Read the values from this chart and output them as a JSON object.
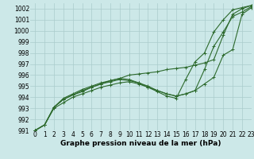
{
  "background_color": "#cce8e8",
  "grid_color": "#aacccc",
  "line_color": "#2d6a2d",
  "title": "Graphe pression niveau de la mer (hPa)",
  "xlim": [
    -0.5,
    23
  ],
  "ylim": [
    991,
    1002.5
  ],
  "xticks": [
    0,
    1,
    2,
    3,
    4,
    5,
    6,
    7,
    8,
    9,
    10,
    11,
    12,
    13,
    14,
    15,
    16,
    17,
    18,
    19,
    20,
    21,
    22,
    23
  ],
  "yticks": [
    991,
    992,
    993,
    994,
    995,
    996,
    997,
    998,
    999,
    1000,
    1001,
    1002
  ],
  "line1_x": [
    0,
    1,
    2,
    3,
    4,
    5,
    6,
    7,
    8,
    9,
    10,
    11,
    12,
    13,
    14,
    15,
    16,
    17,
    18,
    19,
    20,
    21,
    22,
    23
  ],
  "line1_y": [
    991.0,
    991.5,
    993.0,
    993.5,
    994.0,
    994.3,
    994.6,
    994.9,
    995.1,
    995.3,
    995.4,
    995.2,
    994.9,
    994.6,
    994.3,
    994.1,
    994.3,
    994.6,
    995.2,
    995.8,
    997.8,
    998.3,
    1001.5,
    1002.1
  ],
  "line2_x": [
    0,
    1,
    2,
    3,
    4,
    5,
    6,
    7,
    8,
    9,
    10,
    11,
    12,
    13,
    14,
    15,
    16,
    17,
    18,
    19,
    20,
    21,
    22,
    23
  ],
  "line2_y": [
    991.0,
    991.5,
    993.1,
    993.8,
    994.2,
    994.5,
    994.9,
    995.2,
    995.4,
    995.6,
    995.5,
    995.3,
    994.9,
    994.5,
    994.1,
    993.9,
    995.6,
    997.2,
    998.0,
    999.9,
    1001.0,
    1001.9,
    1002.1,
    1002.3
  ],
  "line3_x": [
    0,
    1,
    2,
    3,
    4,
    5,
    6,
    7,
    8,
    9,
    10,
    11,
    12,
    13,
    14,
    15,
    16,
    17,
    18,
    19,
    20,
    21,
    22,
    23
  ],
  "line3_y": [
    991.0,
    991.5,
    993.1,
    993.9,
    994.3,
    994.7,
    995.0,
    995.3,
    995.5,
    995.7,
    995.6,
    995.3,
    995.0,
    994.6,
    994.3,
    994.1,
    994.3,
    994.6,
    996.5,
    998.6,
    999.9,
    1001.3,
    1001.7,
    1002.2
  ],
  "line4_x": [
    0,
    1,
    2,
    3,
    4,
    5,
    6,
    7,
    8,
    9,
    10,
    11,
    12,
    13,
    14,
    15,
    16,
    17,
    18,
    19,
    20,
    21,
    22,
    23
  ],
  "line4_y": [
    991.0,
    991.5,
    993.1,
    993.8,
    994.2,
    994.6,
    994.9,
    995.2,
    995.5,
    995.7,
    996.0,
    996.1,
    996.2,
    996.3,
    996.5,
    996.6,
    996.7,
    996.9,
    997.1,
    997.4,
    999.6,
    1001.5,
    1002.0,
    1002.3
  ],
  "marker_style": "+",
  "marker_size": 3,
  "linewidth": 0.8,
  "xlabel_fontsize": 6.5,
  "tick_fontsize": 5.5,
  "title_fontweight": "bold"
}
